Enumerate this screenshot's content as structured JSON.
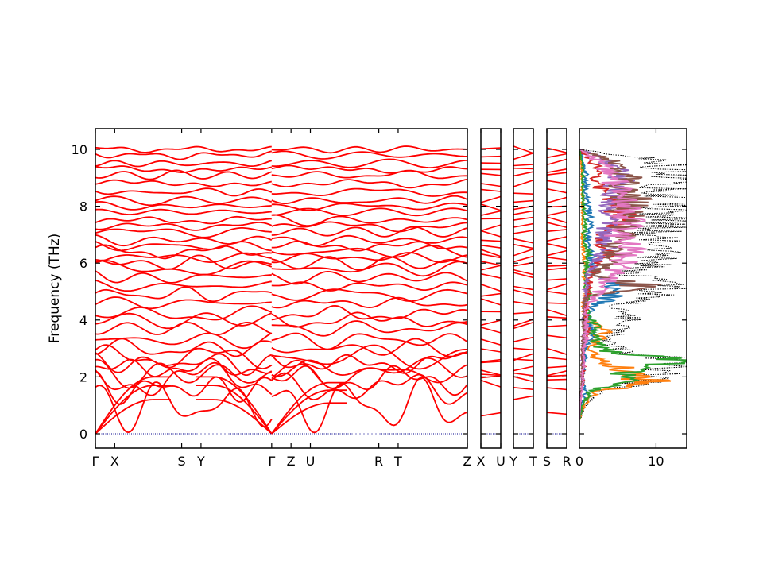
{
  "chart_data": {
    "type": "line",
    "ylabel": "Frequency (THz)",
    "ylim": [
      -0.5,
      10.7
    ],
    "yticks": [
      "0",
      "2",
      "4",
      "6",
      "8",
      "10"
    ],
    "colors": {
      "bands": "#ff0000",
      "zero_line": "#00008b",
      "total_dos": "#000000"
    },
    "panels": [
      {
        "id": "main",
        "segments": [
          "Γ-X-S-Y-Γ",
          "Γ-Z-U-R-T-Z"
        ],
        "tick_labels": [
          {
            "label": "Γ",
            "q": 0.0
          },
          {
            "label": "X",
            "q": 0.052
          },
          {
            "label": "S",
            "q": 0.232
          },
          {
            "label": "Y",
            "q": 0.284
          },
          {
            "label": "Γ",
            "q": 0.474
          },
          {
            "label": "Z",
            "q": 0.526
          },
          {
            "label": "U",
            "q": 0.578
          },
          {
            "label": "R",
            "q": 0.762
          },
          {
            "label": "T",
            "q": 0.814
          },
          {
            "label": "Z",
            "q": 1.0
          }
        ],
        "acoustic_branches_at_gamma": [
          0,
          0,
          0
        ]
      },
      {
        "id": "X-U",
        "tick_labels": [
          {
            "label": "X",
            "q": 0.0
          },
          {
            "label": "U",
            "q": 1.0
          }
        ]
      },
      {
        "id": "Y-T",
        "tick_labels": [
          {
            "label": "Y",
            "q": 0.0
          },
          {
            "label": "T",
            "q": 1.0
          }
        ]
      },
      {
        "id": "S-R",
        "tick_labels": [
          {
            "label": "S",
            "q": 0.0
          },
          {
            "label": "R",
            "q": 1.0
          }
        ]
      },
      {
        "id": "dos",
        "xticks": [
          "0",
          "10"
        ],
        "xlim": [
          0,
          14
        ]
      }
    ],
    "band_centers_thz": [
      1.0,
      1.6,
      1.9,
      2.1,
      2.3,
      2.5,
      2.7,
      3.0,
      3.3,
      3.7,
      4.0,
      4.2,
      4.6,
      4.9,
      5.2,
      5.5,
      5.8,
      6.0,
      6.2,
      6.4,
      6.6,
      6.8,
      7.1,
      7.3,
      7.5,
      7.8,
      8.0,
      8.2,
      8.5,
      8.8,
      9.1,
      9.3,
      9.5,
      9.8,
      10.0
    ],
    "band_amplitudes_thz": [
      0.9,
      0.6,
      0.6,
      0.5,
      0.45,
      0.4,
      0.4,
      0.35,
      0.3,
      0.3,
      0.3,
      0.28,
      0.25,
      0.25,
      0.22,
      0.3,
      0.3,
      0.25,
      0.25,
      0.22,
      0.2,
      0.2,
      0.18,
      0.18,
      0.18,
      0.18,
      0.16,
      0.16,
      0.15,
      0.15,
      0.15,
      0.14,
      0.14,
      0.14,
      0.12
    ],
    "dos_frequencies_thz": [
      0.5,
      1.0,
      1.5,
      1.8,
      2.0,
      2.3,
      2.6,
      2.9,
      3.3,
      3.7,
      4.0,
      4.4,
      4.8,
      5.2,
      5.6,
      6.0,
      6.3,
      6.6,
      7.0,
      7.4,
      7.8,
      8.2,
      8.6,
      9.0,
      9.3,
      9.6,
      10.0
    ],
    "dos_total": [
      0.1,
      0.8,
      2.5,
      8.0,
      9.5,
      10.5,
      12.5,
      5.5,
      4.0,
      5.0,
      6.5,
      4.5,
      9.0,
      11.0,
      7.5,
      10.0,
      12.0,
      11.0,
      9.5,
      12.5,
      11.5,
      13.0,
      12.0,
      13.5,
      12.5,
      10.0,
      0.5
    ],
    "dos_series": [
      {
        "color": "#1f77b4",
        "values": [
          0.05,
          0.3,
          0.8,
          0.5,
          0.4,
          0.6,
          0.8,
          0.7,
          1.2,
          1.8,
          1.0,
          1.5,
          4.0,
          5.5,
          1.5,
          2.0,
          1.5,
          1.2,
          1.0,
          1.5,
          1.2,
          1.0,
          0.8,
          1.0,
          0.6,
          0.5,
          0.05
        ]
      },
      {
        "color": "#ff7f0e",
        "values": [
          0.05,
          0.6,
          2.0,
          10.0,
          7.0,
          5.5,
          2.5,
          1.5,
          2.5,
          3.5,
          1.0,
          0.5,
          0.8,
          1.0,
          0.6,
          0.8,
          0.6,
          0.5,
          0.4,
          0.5,
          0.4,
          0.4,
          0.3,
          0.3,
          0.3,
          0.2,
          0.05
        ]
      },
      {
        "color": "#2ca02c",
        "values": [
          0.05,
          0.4,
          1.5,
          5.5,
          6.0,
          7.5,
          12.5,
          3.5,
          2.0,
          2.5,
          1.5,
          0.8,
          1.2,
          1.0,
          0.8,
          1.0,
          1.2,
          0.8,
          0.6,
          0.8,
          0.6,
          0.5,
          0.4,
          0.5,
          0.4,
          0.3,
          0.05
        ]
      },
      {
        "color": "#d62728",
        "values": [
          0.0,
          0.1,
          0.3,
          0.5,
          0.4,
          0.6,
          0.5,
          0.5,
          0.8,
          1.0,
          0.8,
          0.8,
          1.0,
          1.2,
          1.5,
          2.5,
          4.0,
          3.0,
          3.5,
          5.0,
          5.5,
          4.0,
          3.0,
          2.0,
          2.5,
          1.5,
          0.05
        ]
      },
      {
        "color": "#9467bd",
        "values": [
          0.0,
          0.1,
          0.2,
          0.4,
          0.3,
          0.4,
          0.4,
          0.4,
          0.6,
          0.8,
          0.6,
          0.5,
          0.8,
          1.0,
          1.2,
          2.0,
          3.0,
          3.5,
          3.0,
          4.0,
          3.5,
          4.5,
          5.0,
          5.5,
          4.5,
          3.5,
          0.05
        ]
      },
      {
        "color": "#8c564b",
        "values": [
          0.0,
          0.1,
          0.2,
          0.3,
          0.3,
          0.3,
          0.3,
          0.3,
          0.5,
          0.6,
          0.5,
          0.5,
          1.0,
          8.5,
          2.0,
          3.5,
          5.0,
          4.0,
          5.5,
          6.5,
          6.0,
          7.0,
          5.5,
          6.0,
          5.0,
          4.0,
          0.05
        ]
      },
      {
        "color": "#e377c2",
        "values": [
          0.0,
          0.1,
          0.3,
          0.4,
          0.4,
          0.5,
          0.5,
          0.5,
          0.8,
          1.0,
          0.8,
          1.0,
          2.0,
          3.0,
          4.5,
          5.5,
          7.0,
          6.0,
          5.0,
          6.5,
          5.5,
          6.5,
          5.0,
          4.5,
          3.5,
          2.5,
          0.05
        ]
      }
    ]
  }
}
